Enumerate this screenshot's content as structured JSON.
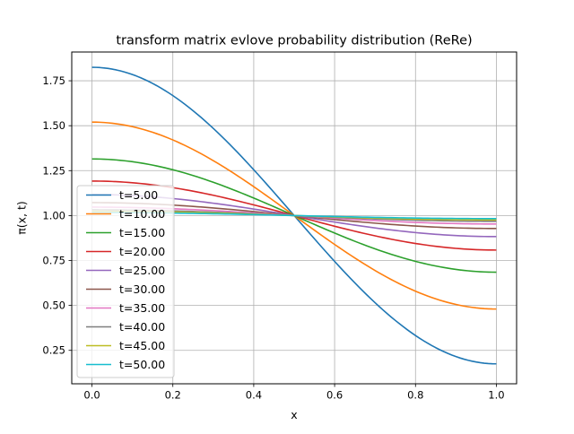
{
  "chart_data": {
    "type": "line",
    "title": "transform matrix evlove probability distribution (ReRe)",
    "xlabel": "x",
    "ylabel": "π(x, t)",
    "xlim": [
      -0.05,
      1.05
    ],
    "ylim": [
      0.064,
      1.91
    ],
    "xticks": [
      0.0,
      0.2,
      0.4,
      0.6,
      0.8,
      1.0
    ],
    "xtick_labels": [
      "0.0",
      "0.2",
      "0.4",
      "0.6",
      "0.8",
      "1.0"
    ],
    "yticks": [
      0.25,
      0.5,
      0.75,
      1.0,
      1.25,
      1.5,
      1.75
    ],
    "ytick_labels": [
      "0.25",
      "0.50",
      "0.75",
      "1.00",
      "1.25",
      "1.50",
      "1.75"
    ],
    "grid": true,
    "legend_position": "lower-left",
    "curve_shape": "y = 1 + A·cos(πx) on x ∈ [0, 1]",
    "series": [
      {
        "name": "t=5.00",
        "amplitude": 0.825,
        "color": "#1f77b4"
      },
      {
        "name": "t=10.00",
        "amplitude": 0.52,
        "color": "#ff7f0e"
      },
      {
        "name": "t=15.00",
        "amplitude": 0.315,
        "color": "#2ca02c"
      },
      {
        "name": "t=20.00",
        "amplitude": 0.192,
        "color": "#d62728"
      },
      {
        "name": "t=25.00",
        "amplitude": 0.117,
        "color": "#9467bd"
      },
      {
        "name": "t=30.00",
        "amplitude": 0.072,
        "color": "#8c564b"
      },
      {
        "name": "t=35.00",
        "amplitude": 0.047,
        "color": "#e377c2"
      },
      {
        "name": "t=40.00",
        "amplitude": 0.032,
        "color": "#7f7f7f"
      },
      {
        "name": "t=45.00",
        "amplitude": 0.024,
        "color": "#bcbd22"
      },
      {
        "name": "t=50.00",
        "amplitude": 0.017,
        "color": "#17becf"
      }
    ]
  }
}
